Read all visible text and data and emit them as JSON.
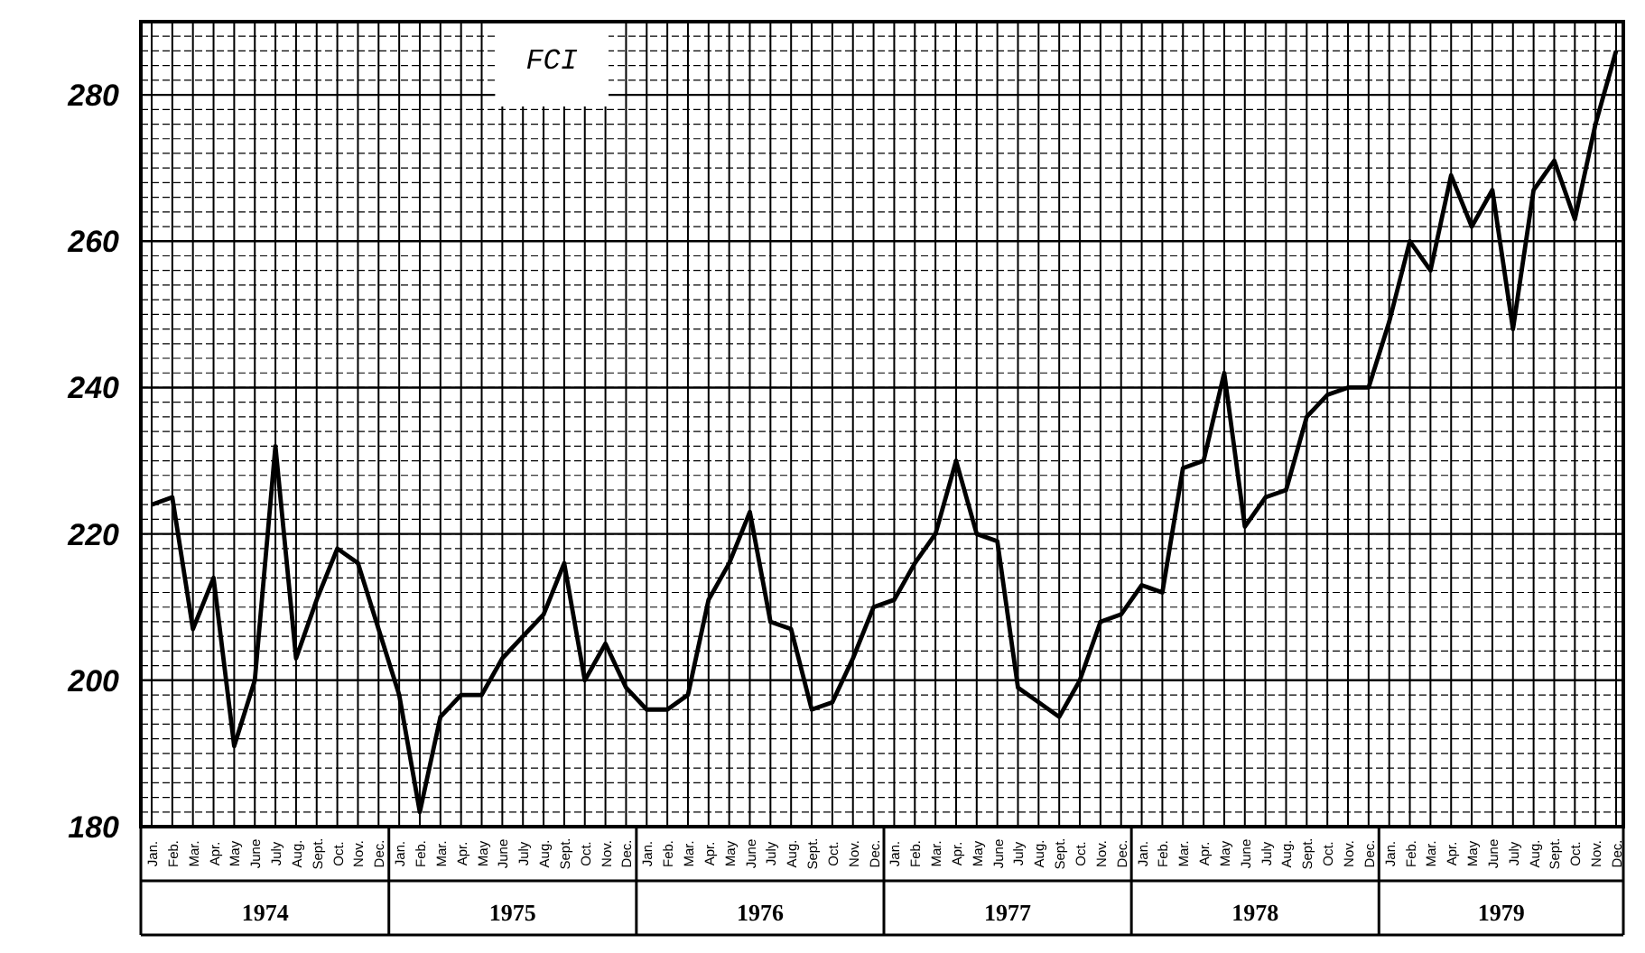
{
  "chart_data": {
    "type": "line",
    "title": "FCI",
    "categories": [
      "Jan.",
      "Feb.",
      "Mar.",
      "Apr.",
      "May",
      "June",
      "July",
      "Aug.",
      "Sept.",
      "Oct.",
      "Nov.",
      "Dec.",
      "Jan.",
      "Feb.",
      "Mar.",
      "Apr.",
      "May",
      "June",
      "July",
      "Aug.",
      "Sept.",
      "Oct.",
      "Nov.",
      "Dec.",
      "Jan.",
      "Feb.",
      "Mar.",
      "Apr.",
      "May",
      "June",
      "July",
      "Aug.",
      "Sept.",
      "Oct.",
      "Nov.",
      "Dec.",
      "Jan.",
      "Feb.",
      "Mar.",
      "Apr.",
      "May",
      "June",
      "July",
      "Aug.",
      "Sept.",
      "Oct.",
      "Nov.",
      "Dec.",
      "Jan.",
      "Feb.",
      "Mar.",
      "Apr.",
      "May",
      "June",
      "July",
      "Aug.",
      "Sept.",
      "Oct.",
      "Nov.",
      "Dec.",
      "Jan.",
      "Feb.",
      "Mar.",
      "Apr.",
      "May",
      "June",
      "July",
      "Aug.",
      "Sept.",
      "Oct.",
      "Nov.",
      "Dec."
    ],
    "series": [
      {
        "color": "#000000",
        "values": [
          224,
          225,
          207,
          214,
          191,
          200,
          232,
          203,
          211,
          218,
          216,
          207,
          198,
          182,
          195,
          198,
          198,
          203,
          206,
          209,
          216,
          200,
          205,
          199,
          196,
          196,
          198,
          211,
          216,
          223,
          208,
          207,
          196,
          197,
          203,
          210,
          211,
          216,
          220,
          230,
          220,
          219,
          199,
          197,
          195,
          200,
          208,
          209,
          213,
          212,
          229,
          230,
          242,
          221,
          225,
          226,
          236,
          239,
          240,
          240,
          249,
          260,
          256,
          269,
          262,
          267,
          248,
          267,
          271,
          263,
          276,
          286
        ]
      }
    ],
    "annotations": [
      "1974",
      "1975",
      "1976",
      "1977",
      "1978",
      "1979"
    ],
    "ylim": [
      180,
      290
    ],
    "yticks": [
      180,
      200,
      220,
      240,
      260,
      280
    ],
    "grid": true,
    "marker": "none",
    "line_style": "solid"
  }
}
